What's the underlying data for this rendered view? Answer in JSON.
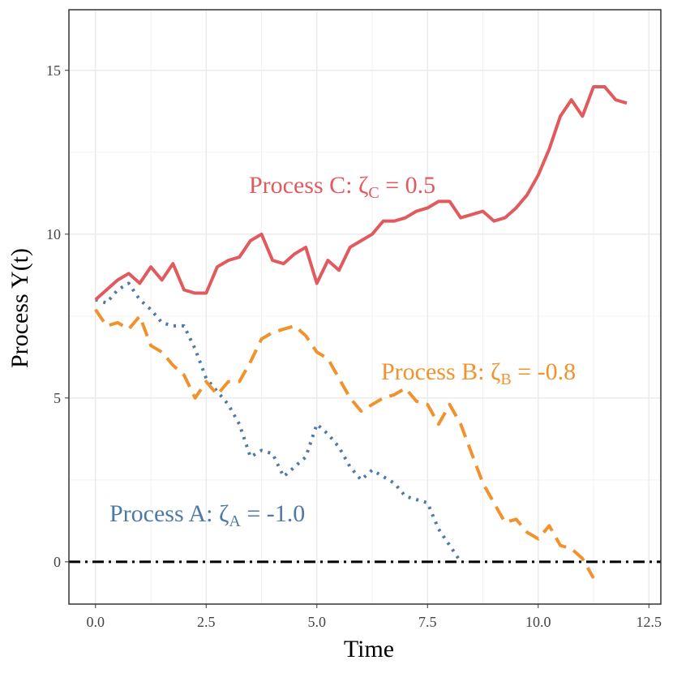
{
  "chart_data": {
    "type": "line",
    "xlabel": "Time",
    "ylabel": "Process Y(t)",
    "xlim": [
      -0.6,
      12.77
    ],
    "ylim": [
      -1.29,
      16.85
    ],
    "xticks": [
      {
        "value": 0,
        "label": "0.0"
      },
      {
        "value": 2.5,
        "label": "2.5"
      },
      {
        "value": 5,
        "label": "5.0"
      },
      {
        "value": 7.5,
        "label": "7.5"
      },
      {
        "value": 10,
        "label": "10.0"
      },
      {
        "value": 12.5,
        "label": "12.5"
      }
    ],
    "yticks": [
      0,
      5,
      10,
      15
    ],
    "grid": true,
    "minor_grid": true,
    "hline": 0,
    "series": [
      {
        "label": "Process A: ζ",
        "label_sub": "A",
        "label_rest": " = -1.0",
        "color": "#4e79a7",
        "dash": "dotted",
        "x": [
          0,
          0.25,
          0.5,
          0.75,
          1,
          1.25,
          1.5,
          1.75,
          2,
          2.25,
          2.5,
          2.75,
          3,
          3.25,
          3.5,
          3.75,
          4,
          4.25,
          4.5,
          4.75,
          5,
          5.25,
          5.5,
          5.75,
          6,
          6.25,
          6.5,
          6.75,
          7,
          7.25,
          7.5,
          7.75,
          8,
          8.25
        ],
        "values": [
          8.0,
          7.9,
          8.3,
          8.5,
          8.0,
          7.7,
          7.3,
          7.2,
          7.2,
          6.5,
          5.6,
          5.2,
          4.8,
          4.2,
          3.2,
          3.4,
          3.3,
          2.6,
          2.9,
          3.2,
          4.2,
          3.9,
          3.5,
          2.9,
          2.5,
          2.8,
          2.6,
          2.4,
          2.0,
          1.9,
          1.8,
          1.0,
          0.5,
          0.0
        ]
      },
      {
        "label": "Process B: ζ",
        "label_sub": "B",
        "label_rest": " = -0.8",
        "color": "#f0922e",
        "dash": "dashed",
        "x": [
          0,
          0.25,
          0.5,
          0.75,
          1,
          1.25,
          1.5,
          1.75,
          2,
          2.25,
          2.5,
          2.75,
          3,
          3.25,
          3.5,
          3.75,
          4,
          4.25,
          4.5,
          4.75,
          5,
          5.25,
          5.5,
          5.75,
          6,
          6.25,
          6.5,
          6.75,
          7,
          7.25,
          7.5,
          7.75,
          8,
          8.25,
          8.5,
          8.75,
          9,
          9.25,
          9.5,
          9.75,
          10,
          10.25,
          10.5,
          10.75,
          11,
          11.25
        ],
        "values": [
          7.7,
          7.2,
          7.3,
          7.1,
          7.5,
          6.6,
          6.4,
          6.0,
          5.7,
          5.0,
          5.5,
          5.1,
          5.5,
          5.5,
          6.1,
          6.8,
          7.0,
          7.1,
          7.2,
          6.9,
          6.4,
          6.2,
          5.6,
          5.0,
          4.6,
          4.8,
          5.0,
          5.1,
          5.3,
          4.9,
          4.8,
          4.2,
          4.8,
          4.2,
          3.3,
          2.4,
          1.8,
          1.2,
          1.3,
          0.9,
          0.7,
          1.1,
          0.5,
          0.4,
          0.1,
          -0.5
        ]
      },
      {
        "label": "Process C: ζ",
        "label_sub": "C",
        "label_rest": " = 0.5",
        "color": "#e05a5e",
        "dash": "solid",
        "x": [
          0,
          0.25,
          0.5,
          0.75,
          1,
          1.25,
          1.5,
          1.75,
          2,
          2.25,
          2.5,
          2.75,
          3,
          3.25,
          3.5,
          3.75,
          4,
          4.25,
          4.5,
          4.75,
          5,
          5.25,
          5.5,
          5.75,
          6,
          6.25,
          6.5,
          6.75,
          7,
          7.25,
          7.5,
          7.75,
          8,
          8.25,
          8.5,
          8.75,
          9,
          9.25,
          9.5,
          9.75,
          10,
          10.25,
          10.5,
          10.75,
          11,
          11.25,
          11.5,
          11.75,
          12
        ],
        "values": [
          8.0,
          8.3,
          8.6,
          8.8,
          8.5,
          9.0,
          8.6,
          9.1,
          8.3,
          8.2,
          8.2,
          9.0,
          9.2,
          9.3,
          9.8,
          10.0,
          9.2,
          9.1,
          9.4,
          9.6,
          8.5,
          9.2,
          8.9,
          9.6,
          9.8,
          10.0,
          10.4,
          10.4,
          10.5,
          10.7,
          10.8,
          11.0,
          11.0,
          10.5,
          10.6,
          10.7,
          10.4,
          10.5,
          10.8,
          11.2,
          11.8,
          12.6,
          13.6,
          14.1,
          13.6,
          14.5,
          14.5,
          14.1,
          14.0
        ]
      }
    ]
  }
}
